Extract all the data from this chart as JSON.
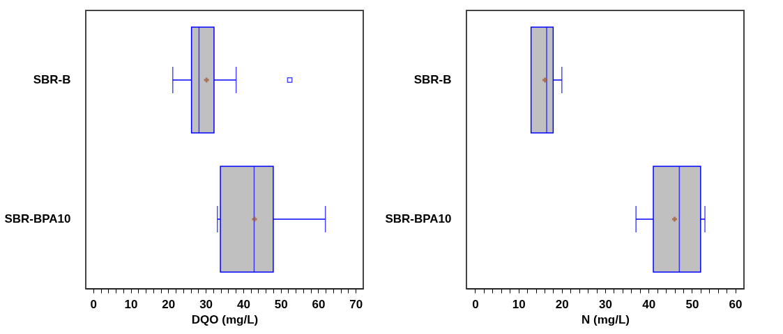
{
  "chart_data": [
    {
      "type": "box",
      "orientation": "horizontal",
      "xlabel": "DQO (mg/L)",
      "categories": [
        "SBR-B",
        "SBR-BPA10"
      ],
      "series": [
        {
          "color": "#c0c0c0",
          "boxes": [
            {
              "low": 21.2,
              "q1": 26.2,
              "median": 28.2,
              "q3": 32.2,
              "high": 38.1,
              "mean": 30.2,
              "outliers": [
                52.4
              ]
            },
            {
              "low": 33.1,
              "q1": 33.9,
              "median": 42.9,
              "q3": 48.0,
              "high": 61.9,
              "mean": 43.0
            }
          ]
        }
      ],
      "xlim": [
        -2,
        72
      ],
      "xticks": [
        0,
        {
          "value": 2,
          "label": null
        },
        {
          "value": 4,
          "label": null
        },
        {
          "value": 6,
          "label": null
        },
        {
          "value": 8,
          "label": null
        },
        10,
        {
          "value": 12,
          "label": null
        },
        {
          "value": 14,
          "label": null
        },
        {
          "value": 16,
          "label": null
        },
        {
          "value": 18,
          "label": null
        },
        20,
        {
          "value": 22,
          "label": null
        },
        {
          "value": 24,
          "label": null
        },
        {
          "value": 26,
          "label": null
        },
        {
          "value": 28,
          "label": null
        },
        30,
        {
          "value": 32,
          "label": null
        },
        {
          "value": 34,
          "label": null
        },
        {
          "value": 36,
          "label": null
        },
        {
          "value": 38,
          "label": null
        },
        40,
        {
          "value": 42,
          "label": null
        },
        {
          "value": 44,
          "label": null
        },
        {
          "value": 46,
          "label": null
        },
        {
          "value": 48,
          "label": null
        },
        50,
        {
          "value": 52,
          "label": null
        },
        {
          "value": 54,
          "label": null
        },
        {
          "value": 56,
          "label": null
        },
        {
          "value": 58,
          "label": null
        },
        60,
        {
          "value": 62,
          "label": null
        },
        {
          "value": 64,
          "label": null
        },
        {
          "value": 66,
          "label": null
        },
        {
          "value": 68,
          "label": null
        },
        70
      ],
      "grid": false
    },
    {
      "type": "box",
      "orientation": "horizontal",
      "xlabel": "N (mg/L)",
      "categories": [
        "SBR-B",
        "SBR-BPA10"
      ],
      "series": [
        {
          "color": "#c0c0c0",
          "boxes": [
            {
              "low": 12.9,
              "q1": 12.9,
              "median": 16.5,
              "q3": 18.0,
              "high": 20.0,
              "mean": 16.1
            },
            {
              "low": 37.1,
              "q1": 41.1,
              "median": 47.1,
              "q3": 52.0,
              "high": 53.0,
              "mean": 46.0
            }
          ]
        }
      ],
      "xlim": [
        -2,
        62
      ],
      "xticks": [
        0,
        {
          "value": 2,
          "label": null
        },
        {
          "value": 4,
          "label": null
        },
        {
          "value": 6,
          "label": null
        },
        {
          "value": 8,
          "label": null
        },
        10,
        {
          "value": 12,
          "label": null
        },
        {
          "value": 14,
          "label": null
        },
        {
          "value": 16,
          "label": null
        },
        {
          "value": 18,
          "label": null
        },
        20,
        {
          "value": 22,
          "label": null
        },
        {
          "value": 24,
          "label": null
        },
        {
          "value": 26,
          "label": null
        },
        {
          "value": 28,
          "label": null
        },
        30,
        {
          "value": 32,
          "label": null
        },
        {
          "value": 34,
          "label": null
        },
        {
          "value": 36,
          "label": null
        },
        {
          "value": 38,
          "label": null
        },
        40,
        {
          "value": 42,
          "label": null
        },
        {
          "value": 44,
          "label": null
        },
        {
          "value": 46,
          "label": null
        },
        {
          "value": 48,
          "label": null
        },
        50,
        {
          "value": 52,
          "label": null
        },
        {
          "value": 54,
          "label": null
        },
        {
          "value": 56,
          "label": null
        },
        {
          "value": 58,
          "label": null
        },
        60
      ],
      "grid": false
    }
  ]
}
